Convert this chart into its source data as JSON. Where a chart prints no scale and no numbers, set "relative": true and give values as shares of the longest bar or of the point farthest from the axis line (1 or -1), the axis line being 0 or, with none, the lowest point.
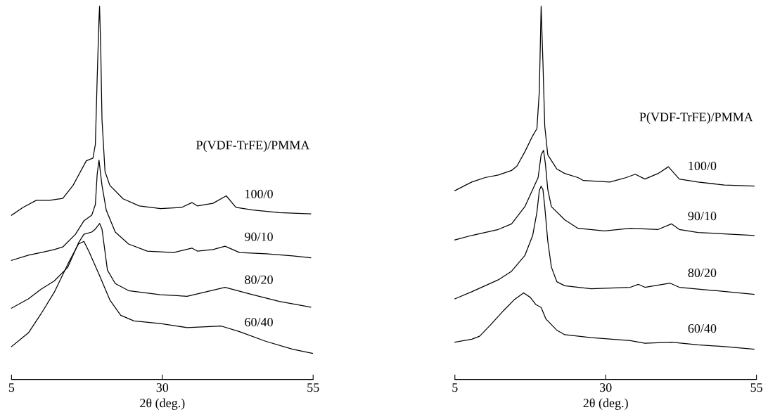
{
  "chart_data": [
    {
      "type": "line",
      "relative": true,
      "xlabel": "2θ (deg.)",
      "legend_title": "P(VDF-TrFE)/PMMA",
      "xlim": [
        5,
        55
      ],
      "xticks": [
        5,
        30,
        55
      ],
      "tick_labels": "x",
      "grid": false,
      "legend": false,
      "marker": "none",
      "line_style": "solid",
      "series": [
        {
          "name": "100/0",
          "color": "#000000",
          "x": [
            5,
            6.9,
            9.1,
            11.3,
            13.5,
            15.2,
            17.4,
            18.5,
            18.9,
            19.2,
            19.5,
            19.6,
            19.8,
            20.0,
            20.5,
            21.3,
            23.5,
            26.2,
            29.7,
            33.2,
            34.9,
            35.8,
            38.4,
            40.6,
            42.2,
            45.0,
            49.4,
            54.6
          ],
          "values": [
            0.44,
            0.461,
            0.48,
            0.48,
            0.485,
            0.52,
            0.586,
            0.593,
            0.63,
            0.806,
            0.967,
            1.0,
            0.879,
            0.696,
            0.557,
            0.52,
            0.484,
            0.465,
            0.458,
            0.461,
            0.474,
            0.465,
            0.472,
            0.492,
            0.461,
            0.454,
            0.447,
            0.444
          ]
        },
        {
          "name": "90/10",
          "color": "#000000",
          "x": [
            5,
            7.8,
            9.9,
            12.1,
            13.5,
            15.6,
            17.0,
            18.3,
            18.9,
            19.2,
            19.5,
            20.0,
            20.7,
            22.2,
            24.4,
            27.5,
            31.9,
            34.9,
            35.8,
            38.4,
            40.4,
            42.8,
            47.2,
            51.6,
            54.6
          ],
          "values": [
            0.319,
            0.333,
            0.34,
            0.348,
            0.355,
            0.389,
            0.425,
            0.44,
            0.469,
            0.55,
            0.588,
            0.52,
            0.454,
            0.395,
            0.363,
            0.344,
            0.34,
            0.352,
            0.344,
            0.348,
            0.357,
            0.34,
            0.337,
            0.331,
            0.326
          ]
        },
        {
          "name": "80/20",
          "color": "#000000",
          "x": [
            5,
            7.8,
            9.9,
            12.1,
            14.3,
            16.1,
            17.0,
            18.3,
            18.9,
            19.6,
            20.0,
            20.9,
            22.2,
            24.4,
            29.7,
            34.1,
            40.4,
            45.0,
            49.4,
            54.6
          ],
          "values": [
            0.191,
            0.216,
            0.242,
            0.264,
            0.3,
            0.366,
            0.389,
            0.395,
            0.403,
            0.418,
            0.403,
            0.293,
            0.257,
            0.238,
            0.227,
            0.223,
            0.247,
            0.227,
            0.209,
            0.194
          ]
        },
        {
          "name": "60/40",
          "color": "#000000",
          "x": [
            5,
            7.8,
            9.9,
            12.1,
            14.3,
            16.1,
            17.0,
            17.8,
            19.6,
            21.3,
            23.1,
            25.3,
            29.7,
            34.1,
            39.8,
            42.8,
            47.2,
            51.6,
            54.9
          ],
          "values": [
            0.088,
            0.125,
            0.176,
            0.234,
            0.308,
            0.363,
            0.37,
            0.344,
            0.278,
            0.213,
            0.172,
            0.157,
            0.15,
            0.139,
            0.143,
            0.128,
            0.102,
            0.081,
            0.07
          ]
        }
      ]
    },
    {
      "type": "line",
      "relative": true,
      "xlabel": "2θ (deg.)",
      "legend_title": "P(VDF-TrFE)/PMMA",
      "xlim": [
        5,
        55
      ],
      "xticks": [
        5,
        30,
        55
      ],
      "tick_labels": "x",
      "grid": false,
      "legend": false,
      "marker": "none",
      "line_style": "solid",
      "series": [
        {
          "name": "100/0",
          "color": "#000000",
          "x": [
            5,
            7.8,
            10.0,
            12.2,
            14.4,
            15.3,
            16.6,
            17.9,
            18.6,
            19.0,
            19.3,
            19.6,
            19.9,
            20.4,
            21.9,
            23.2,
            25.4,
            26.3,
            30.7,
            33.4,
            34.9,
            36.5,
            38.7,
            40.4,
            42.2,
            45.3,
            49.7,
            54.6
          ],
          "values": [
            0.506,
            0.529,
            0.541,
            0.548,
            0.56,
            0.572,
            0.61,
            0.653,
            0.672,
            0.772,
            1.0,
            0.849,
            0.679,
            0.602,
            0.564,
            0.552,
            0.541,
            0.533,
            0.529,
            0.541,
            0.55,
            0.537,
            0.552,
            0.57,
            0.537,
            0.529,
            0.521,
            0.518
          ]
        },
        {
          "name": "90/10",
          "color": "#000000",
          "x": [
            5,
            7.8,
            10.0,
            12.2,
            14.4,
            16.6,
            17.9,
            18.8,
            19.3,
            19.7,
            20.0,
            20.4,
            21.0,
            23.2,
            25.4,
            29.8,
            34.1,
            38.7,
            40.9,
            42.2,
            45.3,
            49.7,
            54.6
          ],
          "values": [
            0.374,
            0.386,
            0.394,
            0.402,
            0.417,
            0.463,
            0.509,
            0.541,
            0.602,
            0.614,
            0.579,
            0.509,
            0.463,
            0.428,
            0.405,
            0.398,
            0.405,
            0.402,
            0.417,
            0.402,
            0.394,
            0.39,
            0.386
          ]
        },
        {
          "name": "80/20",
          "color": "#000000",
          "x": [
            5,
            7.8,
            10.0,
            12.2,
            14.4,
            16.6,
            17.9,
            18.6,
            19.0,
            19.3,
            19.6,
            19.9,
            20.4,
            21.0,
            21.9,
            23.2,
            27.6,
            34.1,
            35.4,
            36.5,
            40.7,
            42.2,
            47.5,
            54.6
          ],
          "values": [
            0.216,
            0.235,
            0.251,
            0.267,
            0.29,
            0.332,
            0.386,
            0.448,
            0.506,
            0.518,
            0.509,
            0.463,
            0.371,
            0.301,
            0.262,
            0.251,
            0.243,
            0.247,
            0.255,
            0.247,
            0.258,
            0.247,
            0.239,
            0.228
          ]
        },
        {
          "name": "60/40",
          "color": "#000000",
          "x": [
            5,
            7.8,
            9.1,
            10.9,
            13.1,
            14.8,
            16.4,
            17.5,
            18.4,
            19.3,
            20.1,
            21.9,
            23.2,
            27.6,
            34.1,
            36.5,
            40.9,
            45.3,
            49.7,
            54.6
          ],
          "values": [
            0.1,
            0.108,
            0.116,
            0.146,
            0.185,
            0.213,
            0.232,
            0.22,
            0.201,
            0.193,
            0.162,
            0.132,
            0.12,
            0.112,
            0.104,
            0.097,
            0.1,
            0.093,
            0.088,
            0.081
          ]
        }
      ]
    }
  ]
}
